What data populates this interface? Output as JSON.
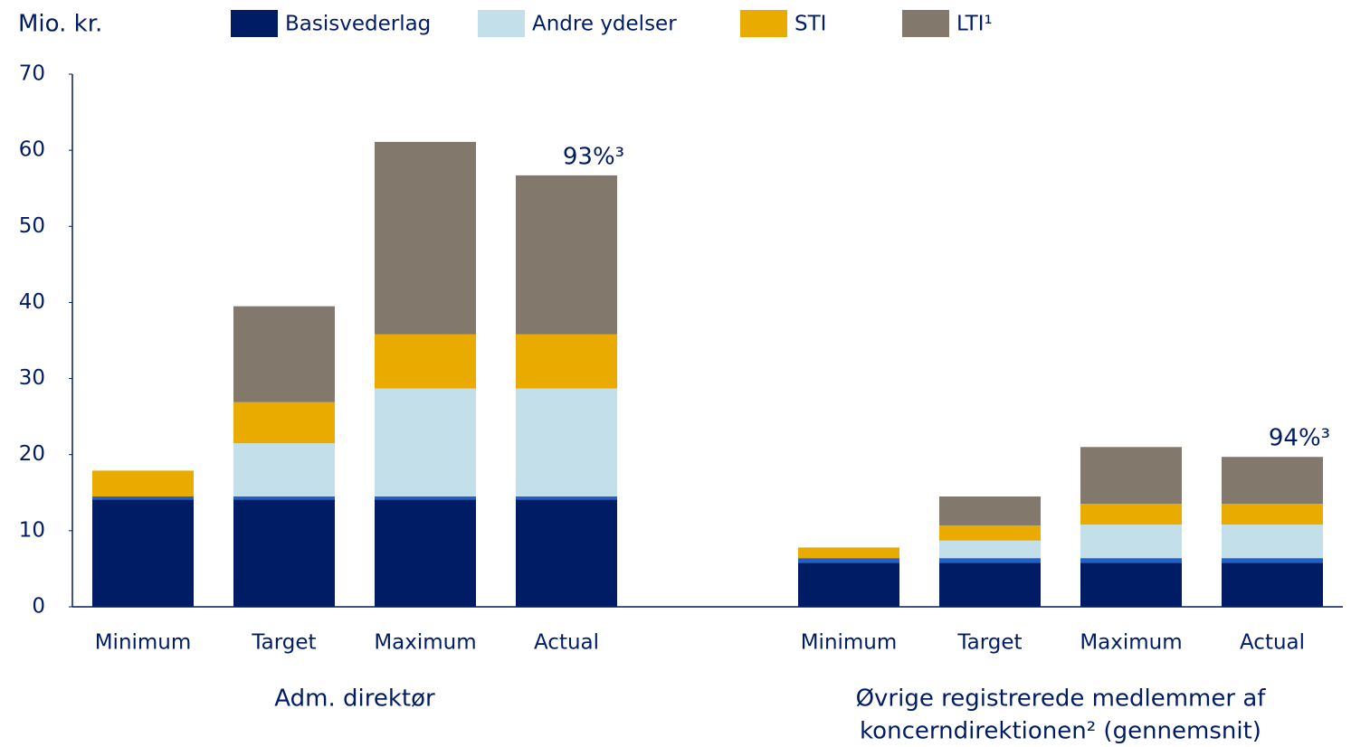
{
  "chart_data": {
    "type": "stacked_bar",
    "y_label": "Mio. kr.",
    "categories": [
      "Minimum",
      "Target",
      "Maximum",
      "Actual",
      null,
      "Minimum",
      "Target",
      "Maximum",
      "Actual"
    ],
    "series": [
      {
        "name": "Basisvederlag",
        "color": "#001c64",
        "values": [
          14.1,
          14.1,
          14.1,
          14.1,
          null,
          5.8,
          5.8,
          5.8,
          5.8
        ]
      },
      {
        "color": "#1f5fcf",
        "values": [
          0.4,
          0.4,
          0.4,
          0.4,
          null,
          0.6,
          0.6,
          0.6,
          0.6
        ]
      },
      {
        "name": "Andre ydelser",
        "color": "#c2dfea",
        "values": [
          0,
          7.0,
          14.2,
          14.2,
          null,
          0,
          2.3,
          4.4,
          4.4
        ]
      },
      {
        "name": "STI",
        "color": "#eaab00",
        "values": [
          3.4,
          5.4,
          7.1,
          7.1,
          null,
          1.4,
          2.0,
          2.75,
          2.75
        ]
      },
      {
        "name": "LTI¹",
        "color": "#83786c",
        "values": [
          0,
          12.6,
          25.3,
          20.9,
          null,
          0,
          3.8,
          7.45,
          6.15
        ]
      }
    ],
    "total_labels": [
      null,
      null,
      null,
      "93%³",
      null,
      null,
      null,
      null,
      "94%³"
    ],
    "groups": [
      {
        "lines": [
          "Adm. direktør"
        ]
      },
      {
        "lines": [
          "Øvrige registrerede medlemmer af",
          "koncerndirektionen² (gennemsnit)"
        ]
      }
    ],
    "ylim": [
      0,
      70
    ],
    "yticks": [
      0,
      10,
      20,
      30,
      40,
      50,
      60,
      70
    ],
    "grid": false
  }
}
